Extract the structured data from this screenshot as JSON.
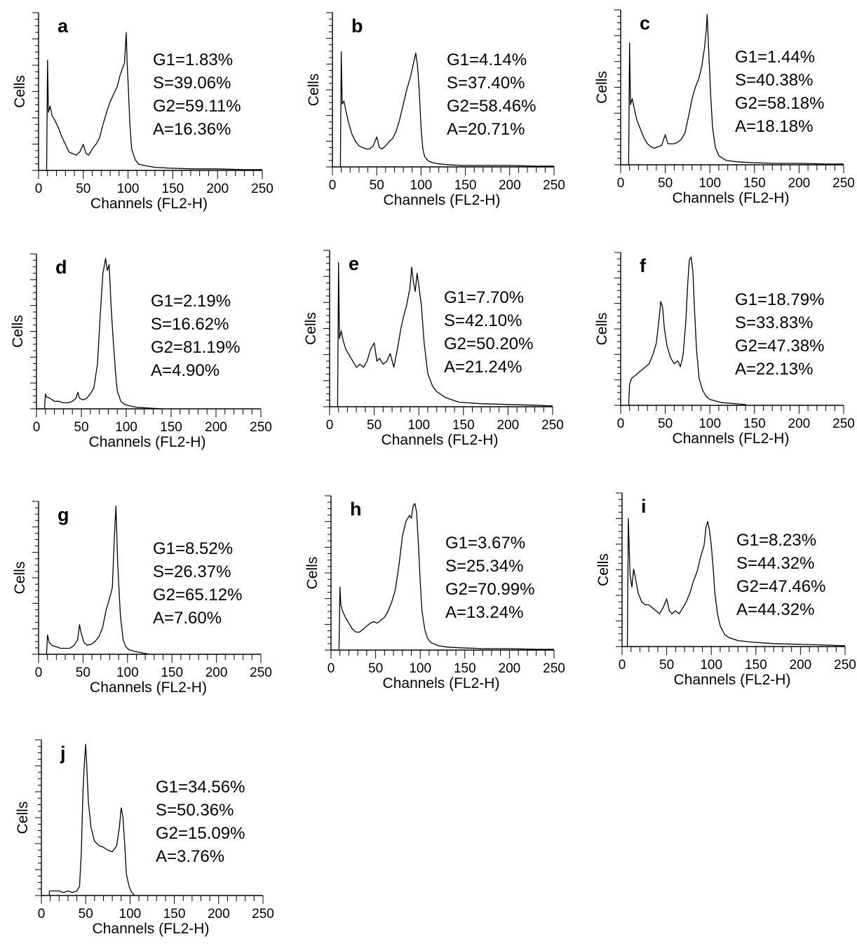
{
  "figure": {
    "panels": [
      {
        "letter": "a",
        "ylabel": "Cells",
        "xlabel": "Channels (FL2-H)",
        "stats": [
          "G1=1.83%",
          "S=39.06%",
          "G2=59.11%",
          "A=16.36%"
        ]
      },
      {
        "letter": "b",
        "ylabel": "Cells",
        "xlabel": "Channels (FL2-H)",
        "stats": [
          "G1=4.14%",
          "S=37.40%",
          "G2=58.46%",
          "A=20.71%"
        ]
      },
      {
        "letter": "c",
        "ylabel": "Cells",
        "xlabel": "Channels (FL2-H)",
        "stats": [
          "G1=1.44%",
          "S=40.38%",
          "G2=58.18%",
          "A=18.18%"
        ]
      },
      {
        "letter": "d",
        "ylabel": "Cells",
        "xlabel": "Channels (FL2-H)",
        "stats": [
          "G1=2.19%",
          "S=16.62%",
          "G2=81.19%",
          "A=4.90%"
        ]
      },
      {
        "letter": "e",
        "ylabel": "Cells",
        "xlabel": "Channels (FL2-H)",
        "stats": [
          "G1=7.70%",
          "S=42.10%",
          "G2=50.20%",
          "A=21.24%"
        ]
      },
      {
        "letter": "f",
        "ylabel": "Cells",
        "xlabel": "Channels (FL2-H)",
        "stats": [
          "G1=18.79%",
          "S=33.83%",
          "G2=47.38%",
          "A=22.13%"
        ]
      },
      {
        "letter": "g",
        "ylabel": "Cells",
        "xlabel": "Channels (FL2-H)",
        "stats": [
          "G1=8.52%",
          "S=26.37%",
          "G2=65.12%",
          "A=7.60%"
        ]
      },
      {
        "letter": "h",
        "ylabel": "Cells",
        "xlabel": "Channels (FL2-H)",
        "stats": [
          "G1=3.67%",
          "S=25.34%",
          "G2=70.99%",
          "A=13.24%"
        ]
      },
      {
        "letter": "i",
        "ylabel": "Cells",
        "xlabel": "Channels (FL2-H)",
        "stats": [
          "G1=8.23%",
          "S=44.32%",
          "G2=47.46%",
          "A=44.32%"
        ]
      },
      {
        "letter": "j",
        "ylabel": "Cells",
        "xlabel": "Channels (FL2-H)",
        "stats": [
          "G1=34.56%",
          "S=50.36%",
          "G2=15.09%",
          "A=3.76%"
        ]
      }
    ]
  },
  "chart_data": [
    {
      "type": "line",
      "panel": "a",
      "xlabel": "Channels (FL2-H)",
      "ylabel": "Cells",
      "xlim": [
        0,
        250
      ],
      "ylim": [
        0,
        100
      ],
      "xticks": [
        0,
        50,
        100,
        150,
        200,
        250
      ],
      "x": [
        9,
        10,
        11,
        13,
        15,
        18,
        22,
        26,
        30,
        34,
        38,
        42,
        46,
        50,
        53,
        56,
        60,
        64,
        68,
        72,
        76,
        80,
        84,
        88,
        91,
        94,
        96,
        98,
        99,
        100,
        102,
        104,
        108,
        112,
        120,
        130,
        145,
        170,
        200,
        230,
        250
      ],
      "y": [
        0,
        72,
        38,
        42,
        36,
        33,
        28,
        22,
        17,
        12,
        11,
        10,
        12,
        17,
        11,
        10,
        14,
        17,
        21,
        30,
        38,
        45,
        50,
        55,
        62,
        67,
        70,
        90,
        70,
        58,
        30,
        14,
        7,
        4,
        3,
        2,
        1.5,
        1,
        1,
        0.5,
        0.5
      ]
    },
    {
      "type": "line",
      "panel": "b",
      "xlabel": "Channels (FL2-H)",
      "ylabel": "Cells",
      "xlim": [
        0,
        250
      ],
      "ylim": [
        0,
        100
      ],
      "xticks": [
        0,
        50,
        100,
        150,
        200,
        250
      ],
      "x": [
        9,
        10,
        11,
        13,
        15,
        18,
        22,
        26,
        30,
        34,
        38,
        42,
        46,
        50,
        53,
        56,
        60,
        64,
        68,
        72,
        76,
        80,
        84,
        88,
        91,
        94,
        96,
        98,
        100,
        102,
        104,
        108,
        112,
        120,
        130,
        145,
        170,
        200,
        230,
        250
      ],
      "y": [
        0,
        77,
        42,
        44,
        38,
        30,
        22,
        17,
        14,
        13,
        12,
        12,
        14,
        20,
        13,
        12,
        14,
        17,
        19,
        24,
        32,
        42,
        52,
        60,
        68,
        76,
        68,
        50,
        26,
        12,
        7,
        4,
        3,
        2,
        1.5,
        1,
        1,
        1,
        0.5,
        0.5
      ]
    },
    {
      "type": "line",
      "panel": "c",
      "xlabel": "Channels (FL2-H)",
      "ylabel": "Cells",
      "xlim": [
        0,
        250
      ],
      "ylim": [
        0,
        100
      ],
      "xticks": [
        0,
        50,
        100,
        150,
        200,
        250
      ],
      "x": [
        9,
        10,
        11,
        13,
        15,
        18,
        22,
        26,
        30,
        34,
        38,
        42,
        46,
        50,
        53,
        56,
        60,
        64,
        68,
        72,
        76,
        80,
        84,
        88,
        91,
        94,
        96,
        97,
        99,
        101,
        103,
        106,
        110,
        118,
        130,
        145,
        170,
        200,
        230,
        250
      ],
      "y": [
        0,
        81,
        40,
        44,
        38,
        30,
        24,
        18,
        14,
        12,
        11,
        12,
        13,
        20,
        14,
        14,
        14,
        15,
        17,
        21,
        32,
        44,
        52,
        58,
        66,
        78,
        90,
        100,
        72,
        45,
        25,
        12,
        6,
        3,
        2,
        1.5,
        1,
        1,
        0.5,
        0.5
      ]
    },
    {
      "type": "line",
      "panel": "d",
      "xlabel": "Channels (FL2-H)",
      "ylabel": "Cells",
      "xlim": [
        0,
        250
      ],
      "ylim": [
        0,
        100
      ],
      "xticks": [
        0,
        50,
        100,
        150,
        200,
        250
      ],
      "x": [
        9,
        10,
        11,
        15,
        20,
        25,
        30,
        35,
        40,
        44,
        46,
        48,
        52,
        56,
        60,
        64,
        68,
        71,
        74,
        77,
        79,
        81,
        83,
        85,
        88,
        90,
        94,
        98,
        104,
        112,
        125,
        140
      ],
      "y": [
        0,
        10,
        8,
        7,
        5,
        5,
        4,
        4,
        5,
        7,
        11,
        7,
        6,
        7,
        10,
        14,
        30,
        62,
        90,
        100,
        92,
        96,
        70,
        50,
        25,
        12,
        5,
        3,
        2,
        1,
        0.5,
        0
      ]
    },
    {
      "type": "line",
      "panel": "e",
      "xlabel": "Channels (FL2-H)",
      "ylabel": "Cells",
      "xlim": [
        0,
        250
      ],
      "ylim": [
        0,
        100
      ],
      "xticks": [
        0,
        50,
        100,
        150,
        200,
        250
      ],
      "x": [
        9,
        10,
        11,
        13,
        15,
        18,
        22,
        26,
        30,
        34,
        38,
        42,
        46,
        50,
        53,
        56,
        60,
        64,
        68,
        72,
        76,
        80,
        84,
        86,
        88,
        90,
        92,
        94,
        96,
        98,
        100,
        103,
        106,
        110,
        115,
        120,
        130,
        145,
        170,
        200,
        230,
        250
      ],
      "y": [
        0,
        95,
        45,
        50,
        44,
        38,
        34,
        30,
        26,
        28,
        26,
        30,
        38,
        42,
        30,
        32,
        28,
        30,
        35,
        26,
        38,
        52,
        62,
        66,
        72,
        78,
        92,
        82,
        76,
        88,
        80,
        66,
        42,
        22,
        14,
        10,
        6,
        3,
        2,
        1.5,
        1,
        0.5
      ]
    },
    {
      "type": "line",
      "panel": "f",
      "xlabel": "Channels (FL2-H)",
      "ylabel": "Cells",
      "xlim": [
        0,
        250
      ],
      "ylim": [
        0,
        100
      ],
      "xticks": [
        0,
        50,
        100,
        150,
        200,
        250
      ],
      "x": [
        9,
        10,
        12,
        16,
        20,
        24,
        28,
        32,
        36,
        40,
        43,
        45,
        47,
        49,
        52,
        56,
        60,
        64,
        67,
        70,
        73,
        75,
        77,
        79,
        81,
        83,
        85,
        88,
        92,
        96,
        100,
        106,
        112,
        120,
        130,
        140
      ],
      "y": [
        0,
        14,
        18,
        20,
        22,
        24,
        26,
        28,
        34,
        42,
        58,
        70,
        66,
        52,
        40,
        32,
        28,
        30,
        26,
        34,
        56,
        80,
        98,
        100,
        90,
        62,
        38,
        18,
        10,
        6,
        4,
        3,
        2,
        1.5,
        1,
        0.5
      ]
    },
    {
      "type": "line",
      "panel": "g",
      "xlabel": "Channels (FL2-H)",
      "ylabel": "Cells",
      "xlim": [
        0,
        250
      ],
      "ylim": [
        0,
        100
      ],
      "xticks": [
        0,
        50,
        100,
        150,
        200,
        250
      ],
      "x": [
        9,
        10,
        12,
        15,
        20,
        25,
        30,
        35,
        40,
        44,
        46,
        48,
        51,
        55,
        60,
        64,
        68,
        72,
        76,
        80,
        83,
        85,
        87,
        89,
        92,
        95,
        98,
        102,
        108,
        116,
        125
      ],
      "y": [
        0,
        13,
        8,
        6,
        5,
        4,
        4,
        4,
        6,
        10,
        20,
        14,
        8,
        6,
        7,
        9,
        12,
        18,
        30,
        38,
        45,
        76,
        100,
        60,
        26,
        10,
        5,
        3,
        2,
        1,
        0
      ]
    },
    {
      "type": "line",
      "panel": "h",
      "xlabel": "Channels (FL2-H)",
      "ylabel": "Cells",
      "xlim": [
        0,
        250
      ],
      "ylim": [
        0,
        100
      ],
      "xticks": [
        0,
        50,
        100,
        150,
        200,
        250
      ],
      "x": [
        9,
        10,
        11,
        13,
        16,
        20,
        24,
        28,
        32,
        36,
        40,
        44,
        48,
        52,
        56,
        60,
        64,
        68,
        72,
        76,
        80,
        84,
        88,
        90,
        92,
        94,
        96,
        98,
        100,
        102,
        105,
        108,
        112,
        120,
        130,
        145,
        170,
        200,
        230,
        250
      ],
      "y": [
        0,
        42,
        30,
        26,
        22,
        18,
        14,
        12,
        12,
        14,
        16,
        18,
        19,
        18,
        20,
        22,
        26,
        32,
        40,
        56,
        76,
        86,
        90,
        88,
        96,
        98,
        92,
        70,
        46,
        26,
        14,
        8,
        5,
        3,
        2,
        1.5,
        1,
        1,
        0.5,
        0.5
      ]
    },
    {
      "type": "line",
      "panel": "i",
      "xlabel": "Channels (FL2-H)",
      "ylabel": "Cells",
      "xlim": [
        0,
        250
      ],
      "ylim": [
        0,
        100
      ],
      "xticks": [
        0,
        50,
        100,
        150,
        200,
        250
      ],
      "x": [
        6,
        7,
        9,
        11,
        13,
        15,
        18,
        22,
        26,
        30,
        34,
        38,
        42,
        46,
        50,
        53,
        56,
        60,
        64,
        68,
        72,
        76,
        80,
        84,
        88,
        92,
        94,
        96,
        98,
        100,
        102,
        104,
        107,
        110,
        115,
        120,
        130,
        145,
        170,
        200,
        230,
        250
      ],
      "y": [
        0,
        86,
        48,
        40,
        52,
        46,
        36,
        30,
        28,
        28,
        26,
        24,
        22,
        26,
        32,
        24,
        22,
        24,
        22,
        26,
        30,
        36,
        44,
        50,
        60,
        68,
        80,
        84,
        78,
        68,
        54,
        36,
        22,
        14,
        8,
        6,
        4,
        3,
        2,
        1.5,
        1,
        0.5
      ]
    },
    {
      "type": "line",
      "panel": "j",
      "xlabel": "Channels (FL2-H)",
      "ylabel": "Cells",
      "xlim": [
        0,
        250
      ],
      "ylim": [
        0,
        100
      ],
      "xticks": [
        0,
        50,
        100,
        150,
        200,
        250
      ],
      "x": [
        9,
        15,
        20,
        25,
        30,
        35,
        40,
        43,
        45,
        47,
        49,
        50,
        51,
        53,
        56,
        60,
        65,
        70,
        75,
        80,
        85,
        88,
        90,
        92,
        94,
        96,
        99,
        102,
        105
      ],
      "y": [
        3,
        3,
        3,
        2,
        3,
        2,
        3,
        6,
        28,
        70,
        92,
        100,
        88,
        62,
        45,
        36,
        33,
        32,
        30,
        29,
        33,
        45,
        58,
        52,
        34,
        14,
        6,
        2,
        0
      ]
    }
  ]
}
